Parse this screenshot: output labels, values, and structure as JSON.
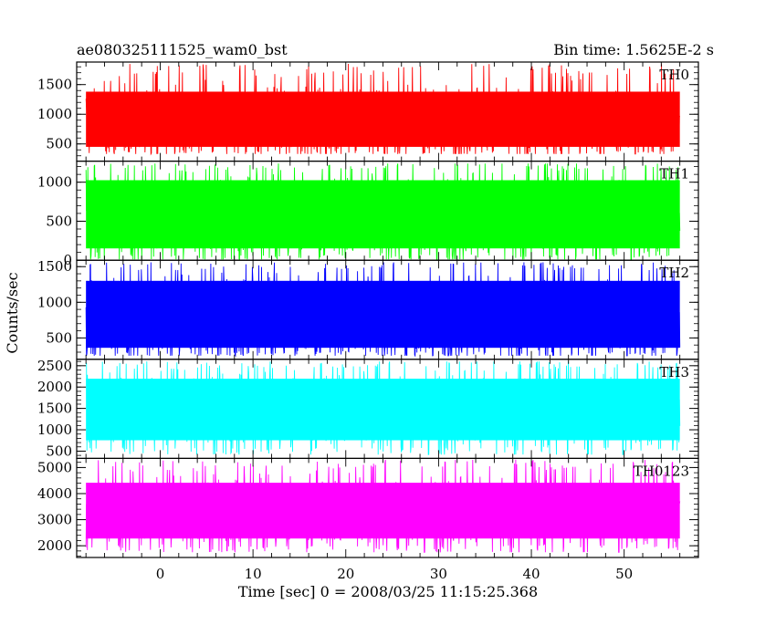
{
  "header": {
    "left": "ae080325111525_wam0_bst",
    "right": "Bin time: 1.5625E-2 s"
  },
  "ylabel": "Counts/sec",
  "xlabel": "Time [sec] 0 = 2008/03/25 11:15:25.368",
  "chart_data": {
    "type": "line",
    "title": "ae080325111525_wam0_bst",
    "subtitle": "Bin time: 1.5625E-2 s",
    "xlabel": "Time [sec] 0 = 2008/03/25 11:15:25.368",
    "ylabel": "Counts/sec",
    "xlim": [
      -9,
      58
    ],
    "x_range_data": [
      -8,
      56
    ],
    "bin_time": 0.015625,
    "xticks": [
      0,
      10,
      20,
      30,
      40,
      50
    ],
    "grid": false,
    "panels": [
      {
        "name": "TH0",
        "color": "#ff0000",
        "ylim": [
          210,
          1880
        ],
        "yticks": [
          500,
          1000,
          1500
        ],
        "mean": 860,
        "low": 420,
        "high": 1420,
        "min": 330,
        "max": 1850
      },
      {
        "name": "TH1",
        "color": "#00ff00",
        "ylim": [
          0,
          1270
        ],
        "yticks": [
          0,
          500,
          1000
        ],
        "mean": 570,
        "low": 120,
        "high": 1060,
        "min": 0,
        "max": 1240
      },
      {
        "name": "TH2",
        "color": "#0000ff",
        "ylim": [
          200,
          1590
        ],
        "yticks": [
          500,
          1000,
          1500
        ],
        "mean": 780,
        "low": 330,
        "high": 1340,
        "min": 250,
        "max": 1560
      },
      {
        "name": "TH3",
        "color": "#00ffff",
        "ylim": [
          330,
          2650
        ],
        "yticks": [
          500,
          1000,
          1500,
          2000,
          2500
        ],
        "mean": 1480,
        "low": 700,
        "high": 2250,
        "min": 420,
        "max": 2600
      },
      {
        "name": "TH0123",
        "color": "#ff00ff",
        "ylim": [
          1550,
          5350
        ],
        "yticks": [
          2000,
          3000,
          4000,
          5000
        ],
        "mean": 3300,
        "low": 2200,
        "high": 4500,
        "min": 1750,
        "max": 5300
      }
    ]
  }
}
